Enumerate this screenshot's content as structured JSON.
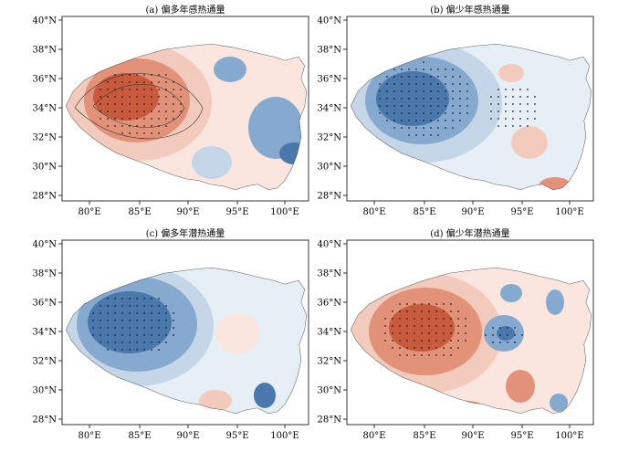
{
  "panels": [
    {
      "id": "a",
      "title": "(a) 偏多年感热通量",
      "scheme": "warm-west"
    },
    {
      "id": "b",
      "title": "(b) 偏少年感热通量",
      "scheme": "cool-west"
    },
    {
      "id": "c",
      "title": "(c) 偏多年潜热通量",
      "scheme": "cool-west"
    },
    {
      "id": "d",
      "title": "(d) 偏少年潜热通量",
      "scheme": "warm-west-mixed"
    }
  ],
  "axes": {
    "y_ticks": [
      "28°N",
      "30°N",
      "32°N",
      "34°N",
      "36°N",
      "38°N",
      "40°N"
    ],
    "x_ticks": [
      "80°E",
      "85°E",
      "90°E",
      "95°E",
      "100°E"
    ]
  },
  "colors": {
    "red_strong": "#c95a3d",
    "red_mid": "#e3927a",
    "red_light": "#f3cbbd",
    "red_pale": "#fae6de",
    "blue_strong": "#4a78ad",
    "blue_mid": "#86a9cf",
    "blue_light": "#c4d6e8",
    "blue_pale": "#e6eef6",
    "outline": "#333333"
  }
}
